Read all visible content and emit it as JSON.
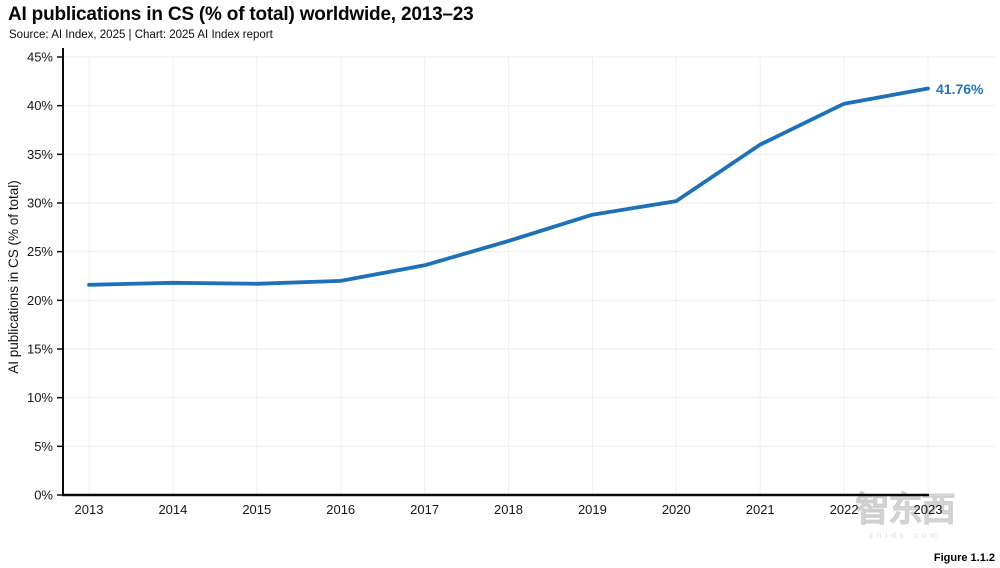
{
  "header": {
    "title": "AI publications in CS (% of total) worldwide, 2013–23",
    "source": "Source: AI Index, 2025 | Chart: 2025 AI Index report"
  },
  "figure_label": "Figure 1.1.2",
  "watermark": {
    "text": "智东西",
    "subtext": "zhidx.com"
  },
  "chart_data": {
    "type": "line",
    "title": "AI publications in CS (% of total) worldwide, 2013–23",
    "x": [
      2013,
      2014,
      2015,
      2016,
      2017,
      2018,
      2019,
      2020,
      2021,
      2022,
      2023
    ],
    "series": [
      {
        "name": "AI publications in CS (% of total)",
        "values": [
          21.6,
          21.8,
          21.7,
          22.0,
          23.6,
          26.1,
          28.8,
          30.2,
          36.0,
          40.2,
          41.76
        ]
      }
    ],
    "end_label": "41.76%",
    "xlabel": "",
    "ylabel": "AI publications in CS (% of total)",
    "ylim": [
      0,
      45
    ],
    "ytick_step": 5,
    "ytick_suffix": "%",
    "grid": true,
    "legend_position": "none",
    "line_color": "#1e71b8",
    "end_label_color": "#2377bd",
    "grid_color": "#ededed",
    "axis_color": "#0a0a0a"
  }
}
